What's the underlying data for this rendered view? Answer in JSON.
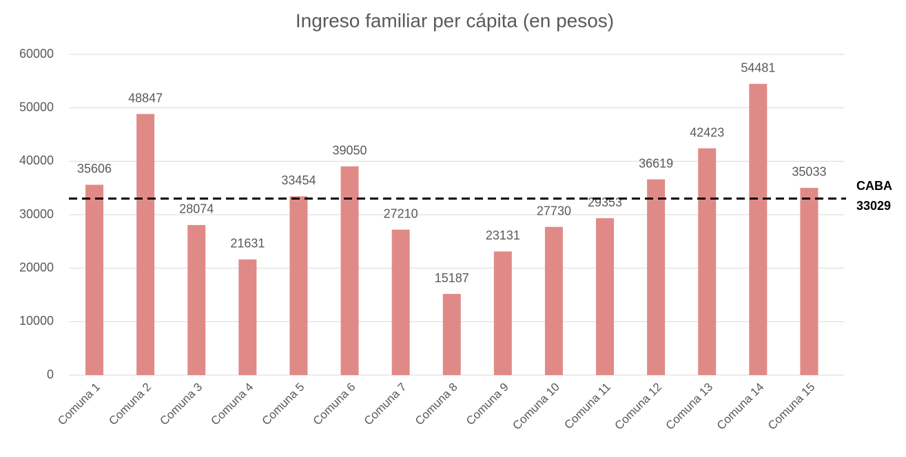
{
  "chart_data": {
    "type": "bar",
    "title": "Ingreso familiar per cápita (en pesos)",
    "categories": [
      "Comuna 1",
      "Comuna 2",
      "Comuna 3",
      "Comuna 4",
      "Comuna 5",
      "Comuna 6",
      "Comuna 7",
      "Comuna 8",
      "Comuna 9",
      "Comuna 10",
      "Comuna 11",
      "Comuna 12",
      "Comuna 13",
      "Comuna 14",
      "Comuna 15"
    ],
    "values": [
      35606,
      48847,
      28074,
      21631,
      33454,
      39050,
      27210,
      15187,
      23131,
      27730,
      29353,
      36619,
      42423,
      54481,
      35033
    ],
    "color": "#e08a87",
    "ylim": [
      0,
      60000
    ],
    "yticks": [
      0,
      10000,
      20000,
      30000,
      40000,
      50000,
      60000
    ],
    "grid": true,
    "reference_line": {
      "label": "CABA",
      "value": 33029,
      "color": "#000000"
    }
  }
}
